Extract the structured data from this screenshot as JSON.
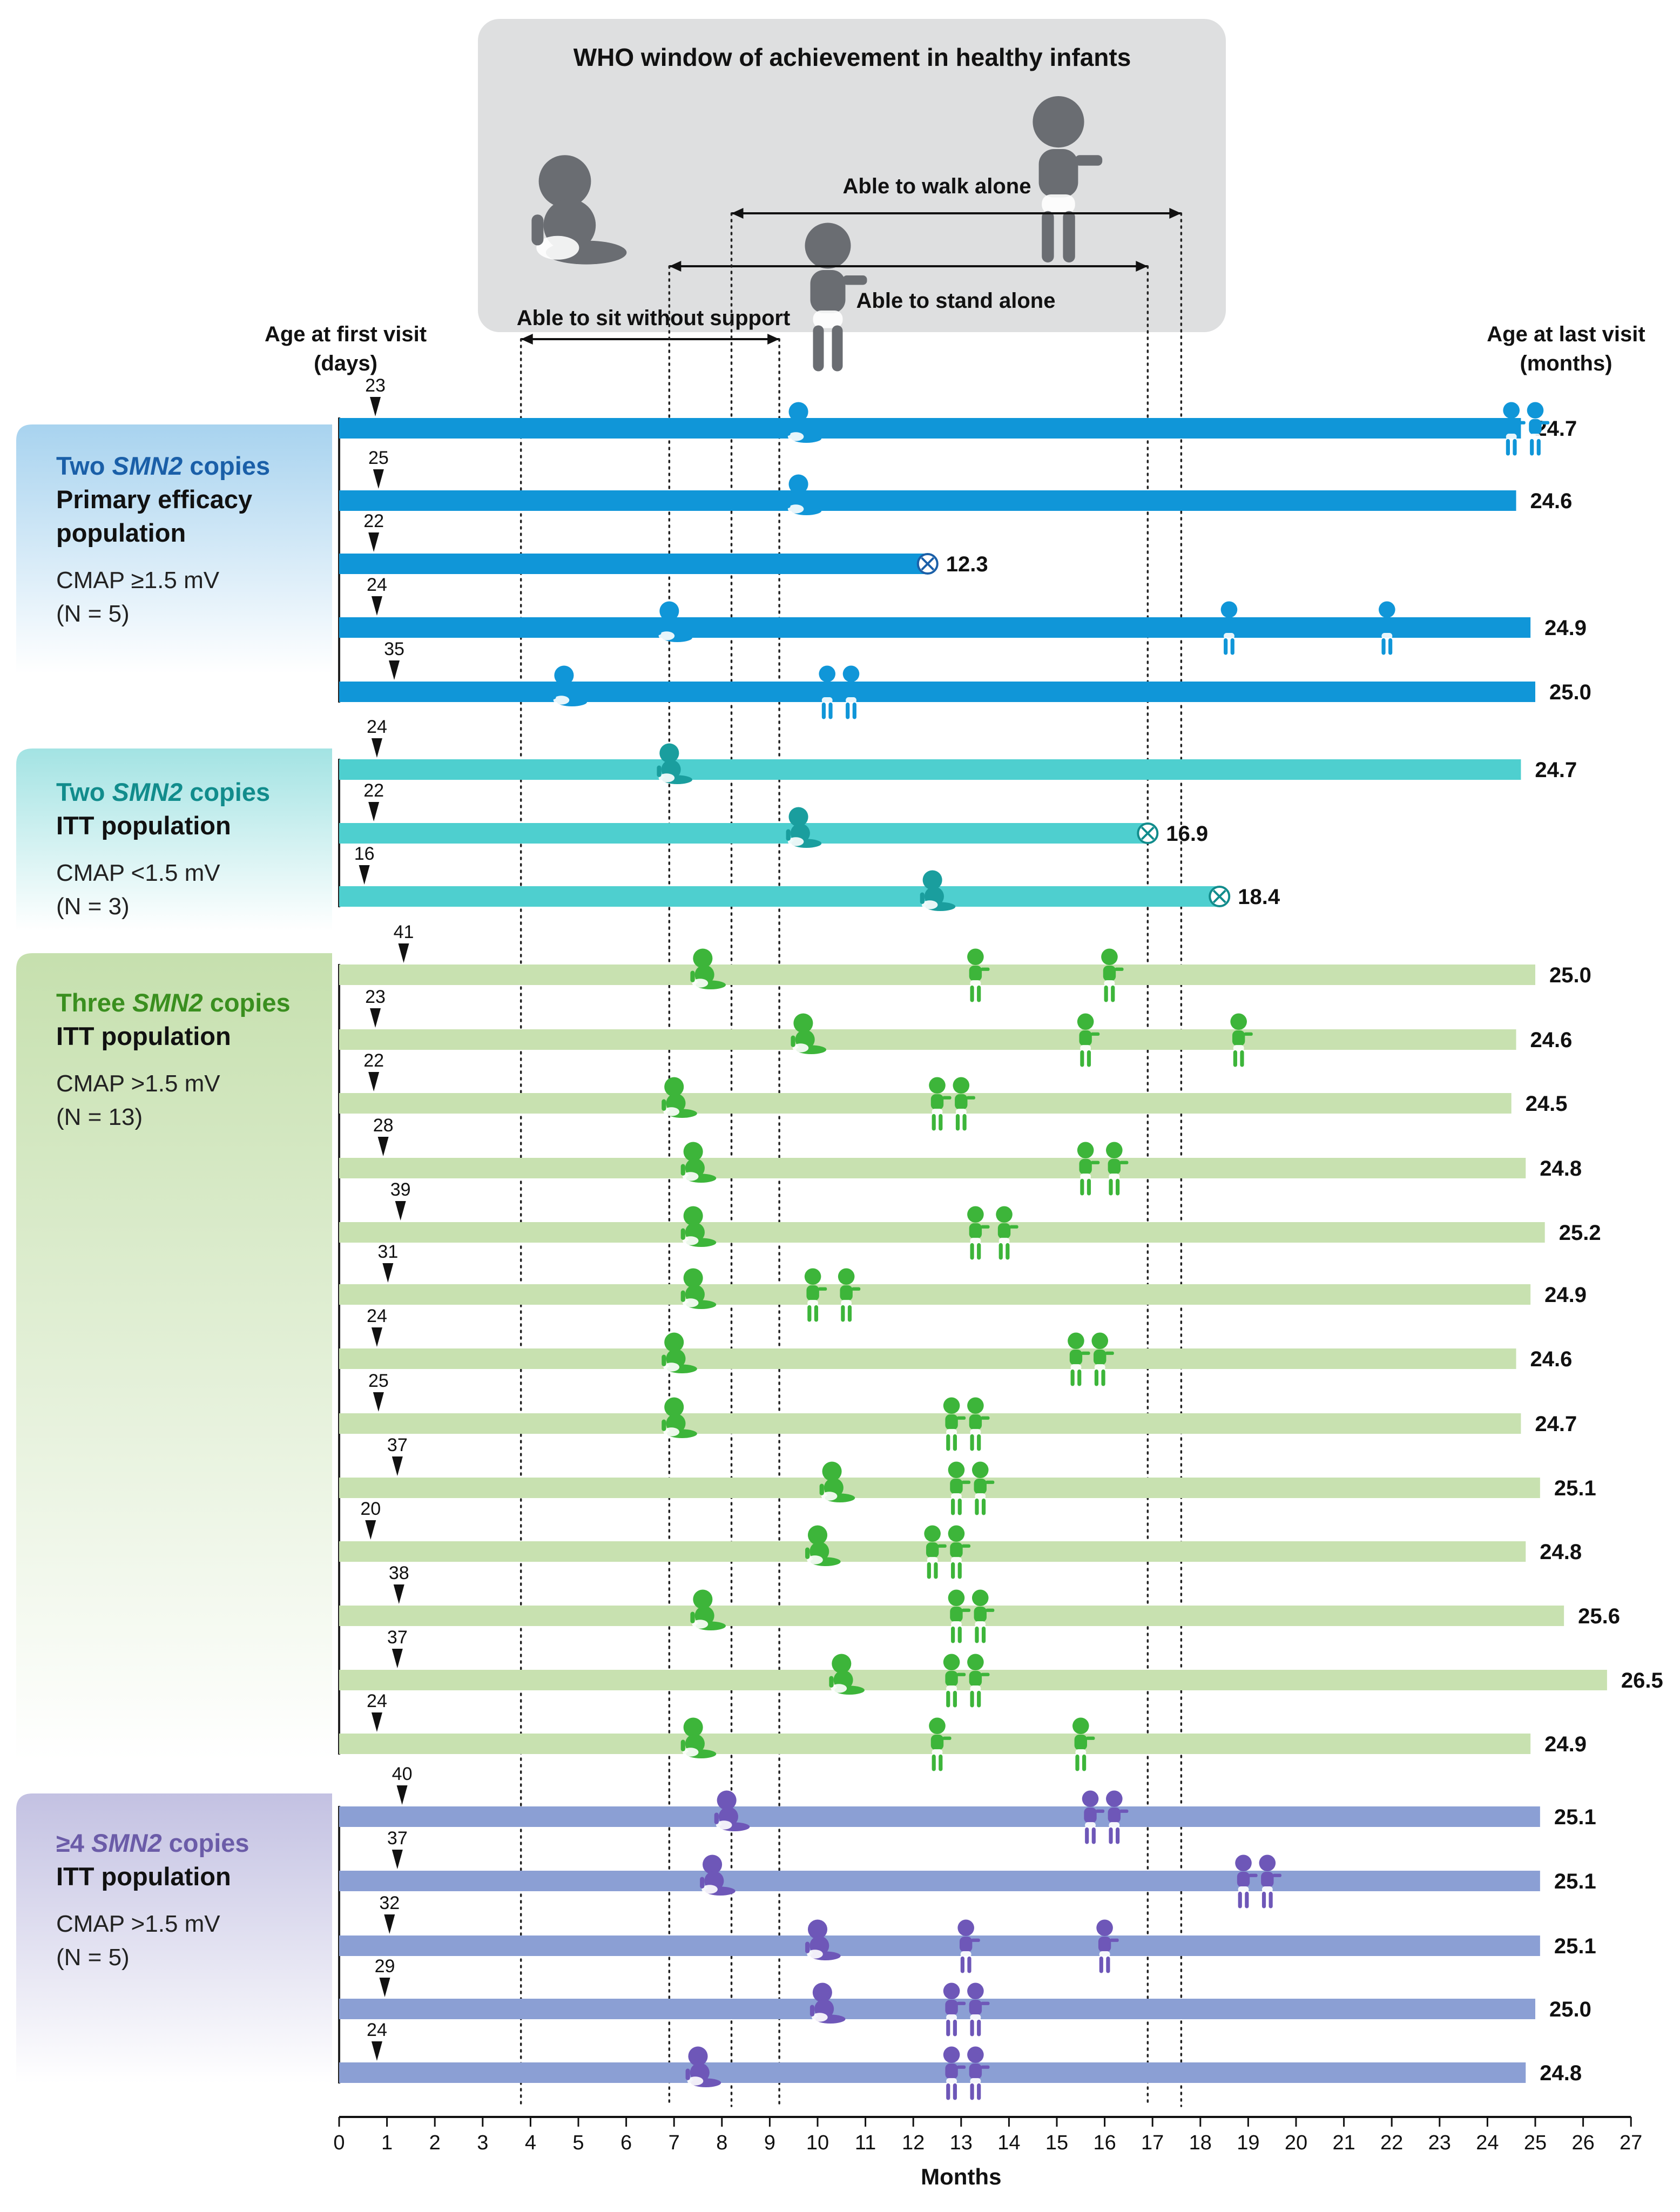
{
  "header": {
    "who_title": "WHO window of achievement in healthy infants",
    "left_col_line1": "Age at first visit",
    "left_col_line2": "(days)",
    "right_col_line1": "Age at last visit",
    "right_col_line2": "(months)",
    "x_axis_label": "Months"
  },
  "colors": {
    "two_primary": "#1096d8",
    "two_primary_text": "#1a5fa8",
    "two_itt": "#4ecfcf",
    "two_itt_text": "#118c8c",
    "three": "#c8e1b0",
    "three_text": "#3a8f1f",
    "three_figure": "#3db53a",
    "four": "#8b9fd4",
    "four_text": "#6b5ca8",
    "four_figure": "#6e57b8",
    "who_box": "#dedfe0",
    "infant_icon": "#6a6d72"
  },
  "panels": [
    {
      "id": "two_primary",
      "title_pre": "Two ",
      "title_gene": "SMN2",
      "title_post": " copies",
      "population": "Primary efficacy population",
      "cmap": "CMAP ≥1.5 mV",
      "n": "(N = 5)"
    },
    {
      "id": "two_itt",
      "title_pre": "Two ",
      "title_gene": "SMN2",
      "title_post": " copies",
      "population": "ITT population",
      "cmap": "CMAP <1.5 mV",
      "n": "(N = 3)"
    },
    {
      "id": "three",
      "title_pre": "Three ",
      "title_gene": "SMN2",
      "title_post": " copies",
      "population": "ITT population",
      "cmap": "CMAP >1.5 mV",
      "n": "(N = 13)"
    },
    {
      "id": "four",
      "title_pre": "≥4 ",
      "title_gene": "SMN2",
      "title_post": " copies",
      "population": "ITT population",
      "cmap": "CMAP >1.5 mV",
      "n": "(N = 5)"
    }
  ],
  "chart_data": {
    "type": "timeline",
    "xlabel": "Months",
    "xlim": [
      0,
      27
    ],
    "xticks": [
      0,
      1,
      2,
      3,
      4,
      5,
      6,
      7,
      8,
      9,
      10,
      11,
      12,
      13,
      14,
      15,
      16,
      17,
      18,
      19,
      20,
      21,
      22,
      23,
      24,
      25,
      26,
      27
    ],
    "who_windows": [
      {
        "milestone": "Able to sit without support",
        "start": 3.8,
        "end": 9.2
      },
      {
        "milestone": "Able to stand alone",
        "start": 6.9,
        "end": 16.9
      },
      {
        "milestone": "Able to walk alone",
        "start": 8.2,
        "end": 17.6
      }
    ],
    "legend": [
      "Able to sit without support",
      "Able to stand alone",
      "Able to walk alone"
    ],
    "infants": [
      {
        "group": "two_primary",
        "first_visit_days": 23,
        "last_visit_months": 24.7,
        "discontinued": false,
        "milestones": [
          {
            "type": "sit",
            "month": 9.6
          },
          {
            "type": "stand",
            "month": 24.5
          },
          {
            "type": "walk",
            "month": 25.0
          }
        ]
      },
      {
        "group": "two_primary",
        "first_visit_days": 25,
        "last_visit_months": 24.6,
        "discontinued": false,
        "milestones": [
          {
            "type": "sit",
            "month": 9.6
          }
        ]
      },
      {
        "group": "two_primary",
        "first_visit_days": 22,
        "last_visit_months": 12.3,
        "discontinued": true,
        "milestones": []
      },
      {
        "group": "two_primary",
        "first_visit_days": 24,
        "last_visit_months": 24.9,
        "discontinued": false,
        "milestones": [
          {
            "type": "sit",
            "month": 6.9
          },
          {
            "type": "stand",
            "month": 18.6
          },
          {
            "type": "stand",
            "month": 21.9
          }
        ]
      },
      {
        "group": "two_primary",
        "first_visit_days": 35,
        "last_visit_months": 25.0,
        "discontinued": false,
        "milestones": [
          {
            "type": "sit",
            "month": 4.7
          },
          {
            "type": "stand",
            "month": 10.2
          },
          {
            "type": "walk",
            "month": 10.7
          }
        ]
      },
      {
        "group": "two_itt",
        "first_visit_days": 24,
        "last_visit_months": 24.7,
        "discontinued": false,
        "milestones": [
          {
            "type": "sit",
            "month": 6.9
          }
        ]
      },
      {
        "group": "two_itt",
        "first_visit_days": 22,
        "last_visit_months": 16.9,
        "discontinued": true,
        "milestones": [
          {
            "type": "sit",
            "month": 9.6
          }
        ]
      },
      {
        "group": "two_itt",
        "first_visit_days": 16,
        "last_visit_months": 18.4,
        "discontinued": true,
        "milestones": [
          {
            "type": "sit",
            "month": 12.4
          }
        ]
      },
      {
        "group": "three",
        "first_visit_days": 41,
        "last_visit_months": 25.0,
        "discontinued": false,
        "milestones": [
          {
            "type": "sit",
            "month": 7.6
          },
          {
            "type": "stand",
            "month": 13.3
          },
          {
            "type": "walk",
            "month": 16.1
          }
        ]
      },
      {
        "group": "three",
        "first_visit_days": 23,
        "last_visit_months": 24.6,
        "discontinued": false,
        "milestones": [
          {
            "type": "sit",
            "month": 9.7
          },
          {
            "type": "stand",
            "month": 15.6
          },
          {
            "type": "walk",
            "month": 18.8
          }
        ]
      },
      {
        "group": "three",
        "first_visit_days": 22,
        "last_visit_months": 24.5,
        "discontinued": false,
        "milestones": [
          {
            "type": "sit",
            "month": 7.0
          },
          {
            "type": "stand",
            "month": 12.5
          },
          {
            "type": "walk",
            "month": 13.0
          }
        ]
      },
      {
        "group": "three",
        "first_visit_days": 28,
        "last_visit_months": 24.8,
        "discontinued": false,
        "milestones": [
          {
            "type": "sit",
            "month": 7.4
          },
          {
            "type": "stand",
            "month": 15.6
          },
          {
            "type": "walk",
            "month": 16.2
          }
        ]
      },
      {
        "group": "three",
        "first_visit_days": 39,
        "last_visit_months": 25.2,
        "discontinued": false,
        "milestones": [
          {
            "type": "sit",
            "month": 7.4
          },
          {
            "type": "stand",
            "month": 13.3
          },
          {
            "type": "walk",
            "month": 13.9
          }
        ]
      },
      {
        "group": "three",
        "first_visit_days": 31,
        "last_visit_months": 24.9,
        "discontinued": false,
        "milestones": [
          {
            "type": "sit",
            "month": 7.4
          },
          {
            "type": "stand",
            "month": 9.9
          },
          {
            "type": "walk",
            "month": 10.6
          }
        ]
      },
      {
        "group": "three",
        "first_visit_days": 24,
        "last_visit_months": 24.6,
        "discontinued": false,
        "milestones": [
          {
            "type": "sit",
            "month": 7.0
          },
          {
            "type": "stand",
            "month": 15.4
          },
          {
            "type": "walk",
            "month": 15.9
          }
        ]
      },
      {
        "group": "three",
        "first_visit_days": 25,
        "last_visit_months": 24.7,
        "discontinued": false,
        "milestones": [
          {
            "type": "sit",
            "month": 7.0
          },
          {
            "type": "stand",
            "month": 12.8
          },
          {
            "type": "walk",
            "month": 13.3
          }
        ]
      },
      {
        "group": "three",
        "first_visit_days": 37,
        "last_visit_months": 25.1,
        "discontinued": false,
        "milestones": [
          {
            "type": "sit",
            "month": 10.3
          },
          {
            "type": "stand",
            "month": 12.9
          },
          {
            "type": "walk",
            "month": 13.4
          }
        ]
      },
      {
        "group": "three",
        "first_visit_days": 20,
        "last_visit_months": 24.8,
        "discontinued": false,
        "milestones": [
          {
            "type": "sit",
            "month": 10.0
          },
          {
            "type": "stand",
            "month": 12.4
          },
          {
            "type": "walk",
            "month": 12.9
          }
        ]
      },
      {
        "group": "three",
        "first_visit_days": 38,
        "last_visit_months": 25.6,
        "discontinued": false,
        "milestones": [
          {
            "type": "sit",
            "month": 7.6
          },
          {
            "type": "stand",
            "month": 12.9
          },
          {
            "type": "walk",
            "month": 13.4
          }
        ]
      },
      {
        "group": "three",
        "first_visit_days": 37,
        "last_visit_months": 26.5,
        "discontinued": false,
        "milestones": [
          {
            "type": "sit",
            "month": 10.5
          },
          {
            "type": "stand",
            "month": 12.8
          },
          {
            "type": "walk",
            "month": 13.3
          }
        ]
      },
      {
        "group": "three",
        "first_visit_days": 24,
        "last_visit_months": 24.9,
        "discontinued": false,
        "milestones": [
          {
            "type": "sit",
            "month": 7.4
          },
          {
            "type": "stand",
            "month": 12.5
          },
          {
            "type": "walk",
            "month": 15.5
          }
        ]
      },
      {
        "group": "four",
        "first_visit_days": 40,
        "last_visit_months": 25.1,
        "discontinued": false,
        "milestones": [
          {
            "type": "sit",
            "month": 8.1
          },
          {
            "type": "stand",
            "month": 15.7
          },
          {
            "type": "walk",
            "month": 16.2
          }
        ]
      },
      {
        "group": "four",
        "first_visit_days": 37,
        "last_visit_months": 25.1,
        "discontinued": false,
        "milestones": [
          {
            "type": "sit",
            "month": 7.8
          },
          {
            "type": "stand",
            "month": 18.9
          },
          {
            "type": "walk",
            "month": 19.4
          }
        ]
      },
      {
        "group": "four",
        "first_visit_days": 32,
        "last_visit_months": 25.1,
        "discontinued": false,
        "milestones": [
          {
            "type": "sit",
            "month": 10.0
          },
          {
            "type": "stand",
            "month": 13.1
          },
          {
            "type": "walk",
            "month": 16.0
          }
        ]
      },
      {
        "group": "four",
        "first_visit_days": 29,
        "last_visit_months": 25.0,
        "discontinued": false,
        "milestones": [
          {
            "type": "sit",
            "month": 10.1
          },
          {
            "type": "stand",
            "month": 12.8
          },
          {
            "type": "walk",
            "month": 13.3
          }
        ]
      },
      {
        "group": "four",
        "first_visit_days": 24,
        "last_visit_months": 24.8,
        "discontinued": false,
        "milestones": [
          {
            "type": "sit",
            "month": 7.5
          },
          {
            "type": "stand",
            "month": 12.8
          },
          {
            "type": "walk",
            "month": 13.3
          }
        ]
      }
    ]
  }
}
